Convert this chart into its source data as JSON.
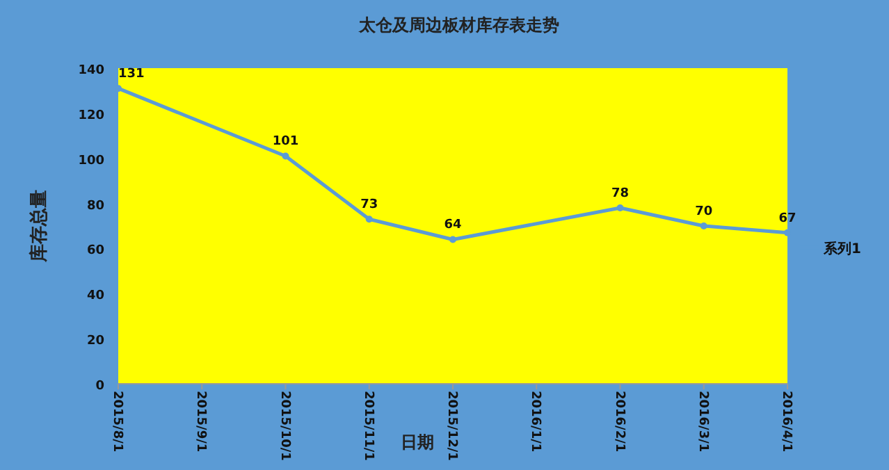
{
  "chart_data": {
    "type": "line",
    "title": "太仓及周边板材库存表走势",
    "xlabel": "日期",
    "ylabel": "库存总量",
    "categories": [
      "2015/8/1",
      "2015/9/1",
      "2015/10/1",
      "2015/11/1",
      "2015/12/1",
      "2016/1/1",
      "2016/2/1",
      "2016/3/1",
      "2016/4/1"
    ],
    "series": [
      {
        "name": "系列1",
        "color": "#5b9bd5",
        "values": [
          131,
          null,
          101,
          73,
          64,
          null,
          78,
          70,
          67
        ]
      }
    ],
    "ylim": [
      0,
      140
    ],
    "yticks": [
      0,
      20,
      40,
      60,
      80,
      100,
      120,
      140
    ],
    "data_labels": true,
    "legend": "right",
    "marker": "circle",
    "grid": false
  }
}
